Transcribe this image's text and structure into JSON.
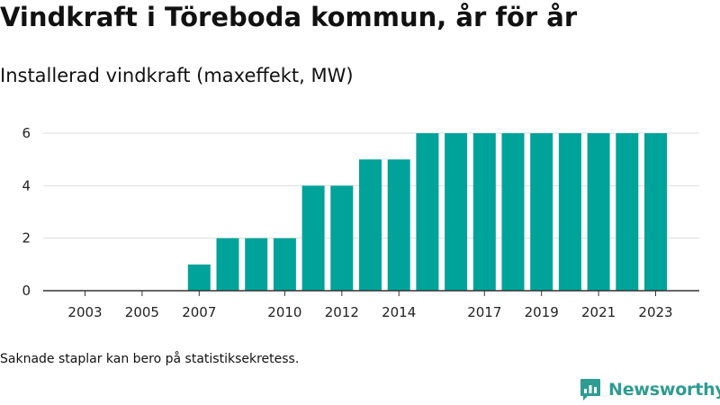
{
  "title": "Vindkraft i Töreboda kommun, år för år",
  "subtitle": "Installerad vindkraft (maxeffekt, MW)",
  "footnote": "Saknade staplar kan bero på statistiksekretess.",
  "brand": {
    "name": "Newsworthy",
    "icon": "newsworthy-logo-icon",
    "color": "#2e9c92"
  },
  "chart_data": {
    "type": "bar",
    "categories": [
      2003,
      2004,
      2005,
      2006,
      2007,
      2008,
      2009,
      2010,
      2011,
      2012,
      2013,
      2014,
      2015,
      2016,
      2017,
      2018,
      2019,
      2020,
      2021,
      2022,
      2023
    ],
    "values": [
      null,
      null,
      null,
      null,
      1,
      2,
      2,
      2,
      4,
      4,
      5,
      5,
      6,
      6,
      6,
      6,
      6,
      6,
      6,
      6,
      6
    ],
    "x_tick_labels": [
      "2003",
      "2005",
      "2007",
      "2010",
      "2012",
      "2014",
      "2017",
      "2019",
      "2021",
      "2023"
    ],
    "y_ticks": [
      0,
      2,
      4,
      6
    ],
    "ylim": [
      0,
      6.5
    ],
    "bar_color": "#00a39a",
    "grid": true,
    "xlabel": "",
    "ylabel": ""
  }
}
